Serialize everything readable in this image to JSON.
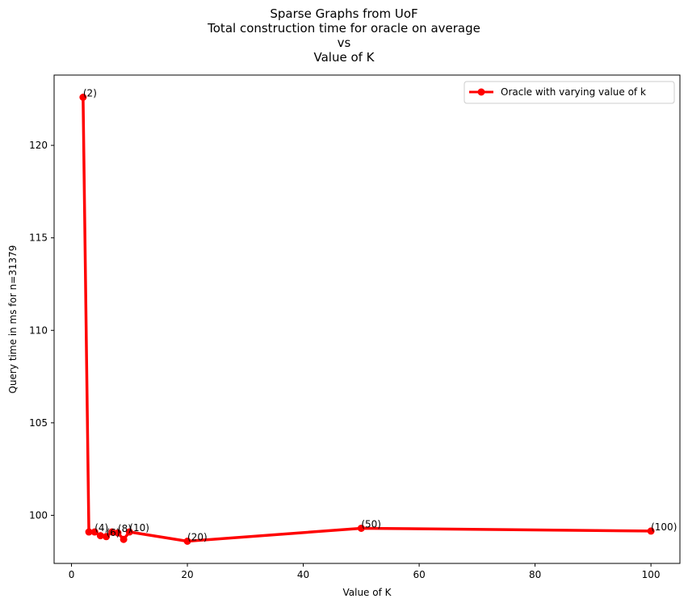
{
  "chart_data": {
    "type": "line",
    "title_lines": [
      "Sparse Graphs from UoF",
      "Total construction time for oracle on average",
      "vs",
      "Value of K"
    ],
    "xlabel": "Value of K",
    "ylabel": "Query time in ms for n=31379",
    "xlim": [
      -3,
      105
    ],
    "ylim": [
      97.4,
      123.8
    ],
    "x_ticks": [
      0,
      20,
      40,
      60,
      80,
      100
    ],
    "y_ticks": [
      100,
      105,
      110,
      115,
      120
    ],
    "grid": false,
    "legend_position": "top-right",
    "series": [
      {
        "name": "Oracle with varying value of k",
        "color": "#ff0000",
        "x": [
          2,
          3,
          4,
          5,
          6,
          7,
          8,
          9,
          10,
          20,
          50,
          100
        ],
        "y": [
          122.6,
          99.1,
          99.1,
          98.9,
          98.85,
          99.1,
          99.05,
          98.7,
          99.1,
          98.6,
          99.3,
          99.15
        ],
        "point_labels": [
          "(2)",
          "",
          "(4)",
          "",
          "(6)",
          "",
          "(8)",
          "",
          "(10)",
          "(20)",
          "(50)",
          "(100)"
        ]
      }
    ]
  }
}
